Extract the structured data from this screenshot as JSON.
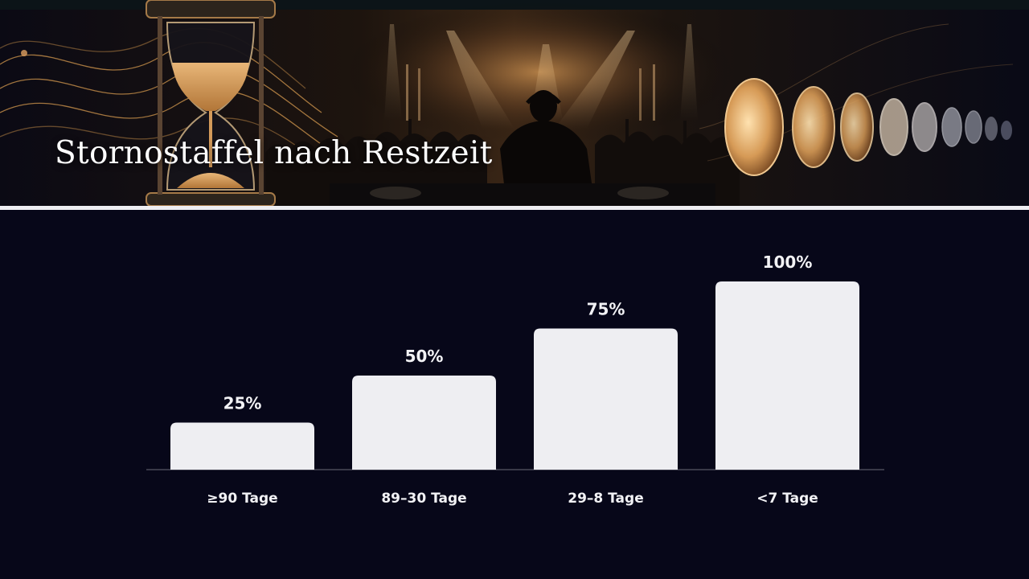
{
  "slide": {
    "title": "Stornostaffel nach Restzeit"
  },
  "colors": {
    "background": "#070719",
    "bar_fill": "#eeeef2",
    "text": "#f2f2f5",
    "accent_gold": "#c8904a",
    "divider": "#eeeef2"
  },
  "banner": {
    "icons": [
      "hourglass-icon",
      "dj-silhouette-icon",
      "crowd-silhouette-icon",
      "glowing-discs-icon",
      "spotlight-beams-icon",
      "golden-wave-lines-icon"
    ]
  },
  "chart_data": {
    "type": "bar",
    "categories": [
      "≥90 Tage",
      "89–30 Tage",
      "29–8 Tage",
      "<7 Tage"
    ],
    "values": [
      25,
      50,
      75,
      100
    ],
    "value_labels": [
      "25%",
      "50%",
      "75%",
      "100%"
    ],
    "title": "",
    "xlabel": "",
    "ylabel": "",
    "ylim": [
      0,
      100
    ],
    "grid": false,
    "legend": "none"
  }
}
